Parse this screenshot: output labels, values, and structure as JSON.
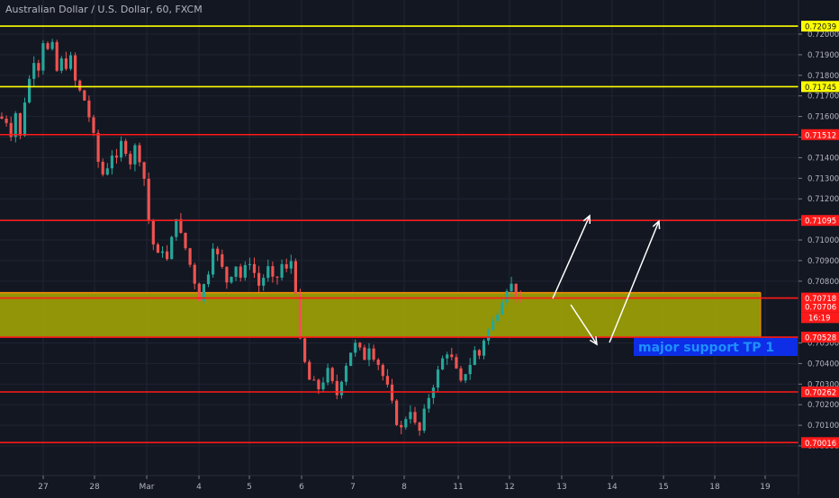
{
  "title": "Australian Dollar / U.S. Dollar, 60, FXCM",
  "colors": {
    "background": "#131722",
    "grid": "#1f2433",
    "up": "#26a69a",
    "down": "#ef5350",
    "red_line": "#ff1a1a",
    "yellow_line": "#ffff00",
    "zone_fill": "#b5b800",
    "zone_border": "#ff8c00",
    "arrow": "#ffffff",
    "annotation_bg": "#0d2ee6",
    "annotation_text": "#1e90ff"
  },
  "chart_data": {
    "type": "candlestick",
    "title": "Australian Dollar / U.S. Dollar, 60, FXCM",
    "xlabel": "",
    "ylabel": "",
    "x_ticks": [
      "27",
      "28",
      "Mar",
      "4",
      "5",
      "6",
      "7",
      "8",
      "11",
      "12",
      "13",
      "14",
      "15",
      "18",
      "19"
    ],
    "y_ticks": [
      "0.72000",
      "0.71900",
      "0.71800",
      "0.71700",
      "0.71600",
      "0.71500",
      "0.71400",
      "0.71300",
      "0.71200",
      "0.71100",
      "0.71000",
      "0.70900",
      "0.70800",
      "0.70500",
      "0.70400",
      "0.70300",
      "0.70200",
      "0.70100",
      "0.70000"
    ],
    "ylim": [
      0.6999,
      0.7205
    ],
    "grid": true,
    "horizontal_lines": [
      {
        "value": 0.72039,
        "label": "0.72039",
        "color": "yellow"
      },
      {
        "value": 0.71745,
        "label": "0.71745",
        "color": "yellow"
      },
      {
        "value": 0.71512,
        "label": "0.71512",
        "color": "red"
      },
      {
        "value": 0.71095,
        "label": "0.71095",
        "color": "red"
      },
      {
        "value": 0.70718,
        "label": "0.70718",
        "color": "red"
      },
      {
        "value": 0.70528,
        "label": "0.70528",
        "color": "red"
      },
      {
        "value": 0.70262,
        "label": "0.70262",
        "color": "red"
      },
      {
        "value": 0.70016,
        "label": "0.70016",
        "color": "red"
      }
    ],
    "zone": {
      "from": 0.70528,
      "to": 0.70718
    },
    "current_price": {
      "value": "0.70706",
      "countdown": "16:19"
    },
    "annotation": "major support TP 1",
    "price_path": [
      [
        0,
        0.716
      ],
      [
        2,
        0.7158
      ],
      [
        3,
        0.7152
      ],
      [
        4,
        0.7162
      ],
      [
        5,
        0.715
      ],
      [
        6,
        0.7168
      ],
      [
        7,
        0.7178
      ],
      [
        8,
        0.7188
      ],
      [
        9,
        0.7184
      ],
      [
        10,
        0.7197
      ],
      [
        11,
        0.7192
      ],
      [
        12,
        0.7194
      ],
      [
        13,
        0.7182
      ],
      [
        14,
        0.7187
      ],
      [
        15,
        0.7185
      ],
      [
        16,
        0.7188
      ],
      [
        17,
        0.7177
      ],
      [
        18,
        0.7172
      ],
      [
        19,
        0.7168
      ],
      [
        20,
        0.716
      ],
      [
        21,
        0.715
      ],
      [
        22,
        0.7138
      ],
      [
        23,
        0.7132
      ],
      [
        24,
        0.7136
      ],
      [
        25,
        0.7142
      ],
      [
        26,
        0.7138
      ],
      [
        27,
        0.7147
      ],
      [
        28,
        0.7144
      ],
      [
        29,
        0.7138
      ],
      [
        30,
        0.7145
      ],
      [
        31,
        0.714
      ],
      [
        32,
        0.713
      ],
      [
        33,
        0.711
      ],
      [
        34,
        0.7098
      ],
      [
        35,
        0.7092
      ],
      [
        36,
        0.7096
      ],
      [
        37,
        0.709
      ],
      [
        38,
        0.71
      ],
      [
        39,
        0.7112
      ],
      [
        40,
        0.7102
      ],
      [
        41,
        0.7096
      ],
      [
        42,
        0.7088
      ],
      [
        43,
        0.708
      ],
      [
        44,
        0.7072
      ],
      [
        45,
        0.7078
      ],
      [
        46,
        0.7085
      ],
      [
        47,
        0.7098
      ],
      [
        48,
        0.7092
      ],
      [
        49,
        0.7086
      ],
      [
        50,
        0.708
      ],
      [
        51,
        0.7084
      ],
      [
        52,
        0.7088
      ],
      [
        53,
        0.7082
      ],
      [
        54,
        0.7086
      ],
      [
        55,
        0.709
      ],
      [
        56,
        0.7084
      ],
      [
        57,
        0.7078
      ],
      [
        58,
        0.7082
      ],
      [
        59,
        0.7086
      ],
      [
        60,
        0.708
      ],
      [
        61,
        0.7082
      ],
      [
        62,
        0.7088
      ],
      [
        63,
        0.7085
      ],
      [
        64,
        0.709
      ],
      [
        65,
        0.7076
      ],
      [
        66,
        0.705
      ],
      [
        67,
        0.704
      ],
      [
        68,
        0.7032
      ],
      [
        69,
        0.703
      ],
      [
        70,
        0.7028
      ],
      [
        71,
        0.7032
      ],
      [
        72,
        0.7036
      ],
      [
        73,
        0.703
      ],
      [
        74,
        0.7025
      ],
      [
        75,
        0.7033
      ],
      [
        76,
        0.704
      ],
      [
        77,
        0.7046
      ],
      [
        78,
        0.7049
      ],
      [
        79,
        0.7046
      ],
      [
        80,
        0.7043
      ],
      [
        81,
        0.7049
      ],
      [
        82,
        0.7044
      ],
      [
        83,
        0.704
      ],
      [
        84,
        0.7034
      ],
      [
        85,
        0.7028
      ],
      [
        86,
        0.702
      ],
      [
        87,
        0.7012
      ],
      [
        88,
        0.7008
      ],
      [
        89,
        0.7014
      ],
      [
        90,
        0.7018
      ],
      [
        91,
        0.701
      ],
      [
        92,
        0.7007
      ],
      [
        93,
        0.7016
      ],
      [
        94,
        0.7024
      ],
      [
        95,
        0.703
      ],
      [
        96,
        0.7036
      ],
      [
        97,
        0.7042
      ],
      [
        98,
        0.7046
      ],
      [
        99,
        0.7042
      ],
      [
        100,
        0.7036
      ],
      [
        101,
        0.703
      ],
      [
        102,
        0.7036
      ],
      [
        103,
        0.704
      ],
      [
        104,
        0.7046
      ],
      [
        105,
        0.7044
      ],
      [
        106,
        0.7052
      ],
      [
        107,
        0.7056
      ],
      [
        108,
        0.706
      ],
      [
        109,
        0.7066
      ],
      [
        110,
        0.7072
      ],
      [
        111,
        0.7077
      ],
      [
        112,
        0.7078
      ],
      [
        113,
        0.7074
      ],
      [
        114,
        0.707
      ]
    ]
  }
}
